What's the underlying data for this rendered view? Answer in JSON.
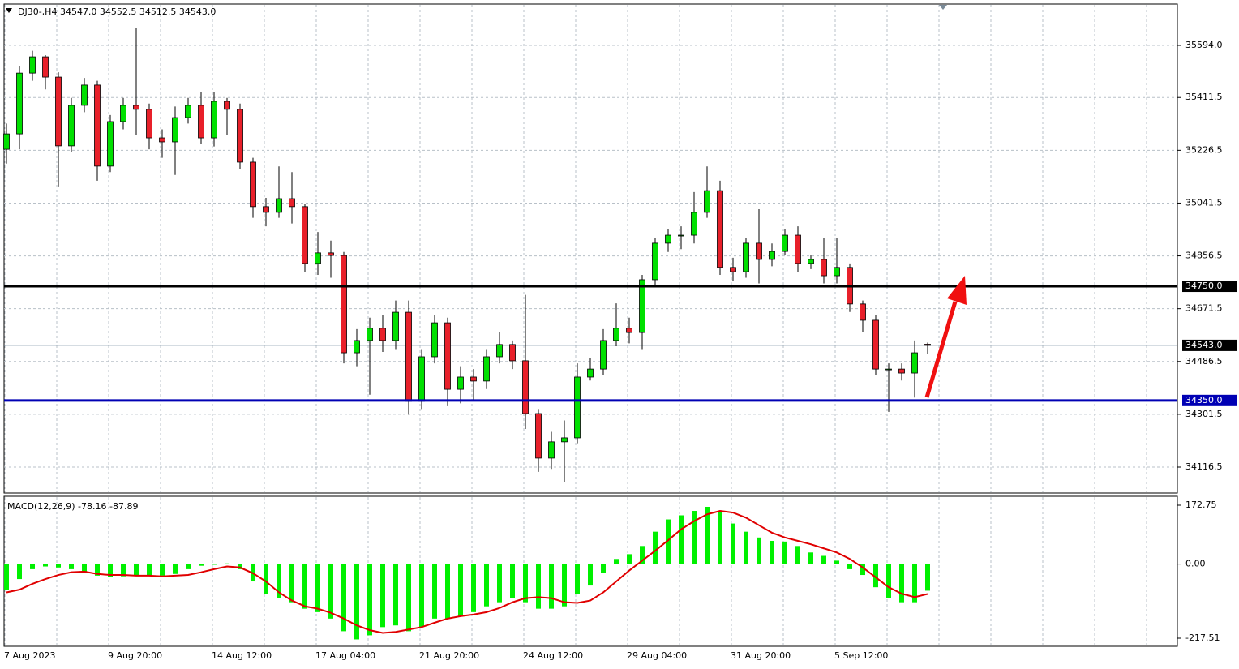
{
  "chart_data": [
    {
      "type": "candlestick",
      "title": "DJ30-,H4  34547.0 34552.5 34512.5 34543.0",
      "categories": [
        "7 Aug 2023",
        null,
        null,
        null,
        null,
        null,
        null,
        null,
        "9 Aug 20:00",
        null,
        null,
        null,
        null,
        null,
        null,
        null,
        "14 Aug 12:00",
        null,
        null,
        null,
        null,
        null,
        null,
        null,
        "17 Aug 04:00",
        null,
        null,
        null,
        null,
        null,
        null,
        null,
        "21 Aug 20:00",
        null,
        null,
        null,
        null,
        null,
        null,
        null,
        "24 Aug 12:00",
        null,
        null,
        null,
        null,
        null,
        null,
        null,
        "29 Aug 04:00",
        null,
        null,
        null,
        null,
        null,
        null,
        null,
        "31 Aug 20:00",
        null,
        null,
        null,
        null,
        null,
        null,
        null,
        "5 Sep 12:00",
        null,
        null,
        null,
        null,
        null,
        null,
        null
      ],
      "open": [
        35230,
        35284,
        35497,
        35554,
        35483,
        35242,
        35384,
        35455,
        35171,
        35327,
        35384,
        35370,
        35270,
        35256,
        35341,
        35384,
        35270,
        35398,
        35370,
        35185,
        35029,
        35009,
        35057,
        35029,
        34830,
        34867,
        34858,
        34517,
        34560,
        34603,
        34560,
        34659,
        34347,
        34503,
        34622,
        34389,
        34432,
        34418,
        34503,
        34546,
        34489,
        34304,
        34148,
        34205,
        34219,
        34432,
        34460,
        34560,
        34603,
        34588,
        34773,
        34901,
        34929,
        34929,
        35009,
        35085,
        34816,
        34801,
        34901,
        34844,
        34872,
        34929,
        34830,
        34844,
        34787,
        34816,
        34688,
        34631,
        34460,
        34460,
        34446,
        34547.0
      ],
      "high": [
        35320,
        35520,
        35575,
        35560,
        35500,
        35410,
        35480,
        35470,
        35350,
        35410,
        35654,
        35390,
        35300,
        35380,
        35410,
        35430,
        35430,
        35410,
        35390,
        35200,
        35060,
        35170,
        35150,
        35040,
        34940,
        34910,
        34870,
        34600,
        34640,
        34650,
        34700,
        34700,
        34530,
        34650,
        34640,
        34470,
        34460,
        34530,
        34590,
        34560,
        34720,
        34320,
        34240,
        34280,
        34480,
        34500,
        34600,
        34690,
        34640,
        34790,
        34920,
        34950,
        34960,
        35080,
        35170,
        35120,
        34850,
        34920,
        35020,
        34900,
        34950,
        34960,
        34860,
        34920,
        34920,
        34830,
        34700,
        34650,
        34480,
        34480,
        34560,
        34552.5
      ],
      "low": [
        35180,
        35230,
        35470,
        35440,
        35100,
        35220,
        35360,
        35120,
        35150,
        35300,
        35280,
        35230,
        35200,
        35140,
        35320,
        35250,
        35240,
        35280,
        35160,
        34990,
        34960,
        34990,
        34970,
        34800,
        34790,
        34780,
        34480,
        34470,
        34370,
        34520,
        34530,
        34300,
        34320,
        34480,
        34330,
        34340,
        34350,
        34390,
        34480,
        34460,
        34250,
        34100,
        34110,
        34063,
        34200,
        34420,
        34440,
        34540,
        34550,
        34530,
        34750,
        34870,
        34880,
        34900,
        34990,
        34790,
        34770,
        34780,
        34760,
        34820,
        34860,
        34800,
        34810,
        34760,
        34760,
        34660,
        34590,
        34440,
        34310,
        34420,
        34360,
        34512.5
      ],
      "close": [
        35284,
        35497,
        35554,
        35483,
        35242,
        35384,
        35455,
        35171,
        35327,
        35384,
        35370,
        35270,
        35256,
        35341,
        35384,
        35270,
        35398,
        35370,
        35185,
        35029,
        35009,
        35057,
        35029,
        34830,
        34867,
        34858,
        34517,
        34560,
        34603,
        34560,
        34659,
        34347,
        34503,
        34622,
        34389,
        34432,
        34418,
        34503,
        34546,
        34489,
        34304,
        34148,
        34205,
        34219,
        34432,
        34460,
        34560,
        34603,
        34588,
        34773,
        34901,
        34929,
        34929,
        35009,
        35085,
        34816,
        34801,
        34901,
        34844,
        34872,
        34929,
        34830,
        34844,
        34787,
        34816,
        34688,
        34631,
        34460,
        34460,
        34446,
        34517,
        34543.0
      ],
      "up_color": "#00e000",
      "down_color": "#e8202a",
      "wick_color": "#000000",
      "ylim": [
        34025.6,
        35738.9
      ],
      "yticks": [
        {
          "value": 35594,
          "label": "35594.0"
        },
        {
          "value": 35411.5,
          "label": "35411.5"
        },
        {
          "value": 35226.5,
          "label": "35226.5"
        },
        {
          "value": 35041.5,
          "label": "35041.5"
        },
        {
          "value": 34856.5,
          "label": "34856.5"
        },
        {
          "value": 34671.5,
          "label": "34671.5"
        },
        {
          "value": 34486.5,
          "label": "34486.5"
        },
        {
          "value": 34301.5,
          "label": "34301.5"
        },
        {
          "value": 34116.5,
          "label": "34116.5"
        }
      ],
      "levels": [
        {
          "value": 34750,
          "label": "34750.0",
          "color": "#000000"
        },
        {
          "value": 34350,
          "label": "34350.0",
          "color": "#0000b4"
        }
      ],
      "last_price": {
        "value": 34543,
        "label": "34543.0",
        "color": "#8fa3b3"
      },
      "grid": true
    },
    {
      "type": "macd",
      "title": "MACD(12,26,9) -78.16 -87.89",
      "histogram": [
        -75,
        -44,
        -15,
        -7,
        -10,
        -15,
        -22,
        -34,
        -39,
        -36,
        -32,
        -34,
        -34,
        -29,
        -15,
        -5,
        -2,
        2,
        -15,
        -51,
        -87,
        -100,
        -112,
        -131,
        -141,
        -160,
        -197,
        -221,
        -209,
        -185,
        -180,
        -197,
        -185,
        -160,
        -160,
        -153,
        -141,
        -124,
        -112,
        -100,
        -112,
        -131,
        -131,
        -124,
        -87,
        -63,
        -27,
        15,
        29,
        53,
        95,
        131,
        143,
        156,
        168,
        156,
        119,
        95,
        78,
        68,
        66,
        53,
        34,
        24,
        10,
        -15,
        -32,
        -68,
        -100,
        -112,
        -112,
        -78.16
      ],
      "signal": [
        -83,
        -75,
        -58,
        -44,
        -32,
        -24,
        -22,
        -29,
        -32,
        -32,
        -34,
        -34,
        -36,
        -34,
        -32,
        -24,
        -15,
        -7,
        -10,
        -27,
        -51,
        -83,
        -107,
        -124,
        -131,
        -143,
        -160,
        -180,
        -194,
        -202,
        -199,
        -192,
        -185,
        -172,
        -160,
        -153,
        -148,
        -141,
        -129,
        -112,
        -100,
        -97,
        -100,
        -112,
        -114,
        -107,
        -83,
        -51,
        -19,
        10,
        39,
        70,
        102,
        126,
        146,
        156,
        151,
        136,
        114,
        92,
        78,
        68,
        58,
        46,
        34,
        15,
        -10,
        -39,
        -68,
        -87,
        -97,
        -87.89
      ],
      "histogram_color": "#00f000",
      "signal_color": "#e00000",
      "ylim": [
        -241.3,
        198.9
      ],
      "yticks": [
        {
          "value": 172.75,
          "label": "172.75"
        },
        {
          "value": 0,
          "label": "0.00"
        },
        {
          "value": -217.51,
          "label": "-217.51"
        }
      ]
    }
  ]
}
